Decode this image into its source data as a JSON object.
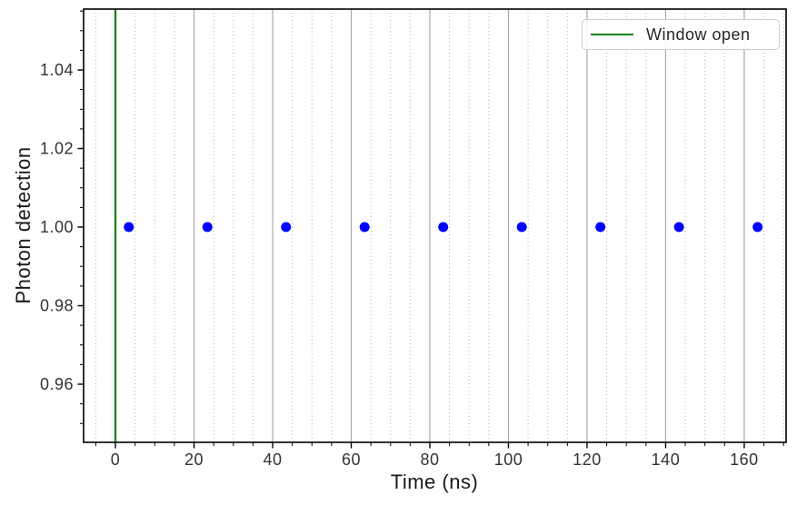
{
  "chart_data": {
    "type": "scatter",
    "title": "",
    "xlabel": "Time (ns)",
    "ylabel": "Photon detection",
    "xlim": [
      -8.1,
      170.65
    ],
    "ylim": [
      0.9452,
      1.0555
    ],
    "xticks": [
      0,
      20,
      40,
      60,
      80,
      100,
      120,
      140,
      160
    ],
    "xtick_labels": [
      "0",
      "20",
      "40",
      "60",
      "80",
      "100",
      "120",
      "140",
      "160"
    ],
    "yticks": [
      0.96,
      0.98,
      1.0,
      1.02,
      1.04
    ],
    "ytick_labels": [
      "0.96",
      "0.98",
      "1.00",
      "1.02",
      "1.04"
    ],
    "x_minor_step": 5,
    "y_minor_step": 0.005,
    "grid": "vertical-only (major solid, minor dotted)",
    "legend_position": "upper-right",
    "series": [
      {
        "name": "photon-detections",
        "kind": "scatter",
        "marker": "circle",
        "color": "#0000ff",
        "x": [
          3.4,
          23.4,
          43.4,
          63.4,
          83.4,
          103.4,
          123.4,
          143.4,
          163.4
        ],
        "y": [
          1.0,
          1.0,
          1.0,
          1.0,
          1.0,
          1.0,
          1.0,
          1.0,
          1.0
        ]
      },
      {
        "name": "window-open",
        "kind": "vline",
        "label": "Window open",
        "color": "#008000",
        "x": 0
      }
    ],
    "legend": {
      "entries": [
        {
          "label": "Window open",
          "color": "#008000",
          "type": "line"
        }
      ]
    },
    "colors": {
      "spine": "#000000",
      "grid_major": "#aaaaaa",
      "grid_minor": "#b4b4b4",
      "tick_label": "#333333",
      "axis_label": "#1a1a1a",
      "background": "#ffffff"
    }
  }
}
